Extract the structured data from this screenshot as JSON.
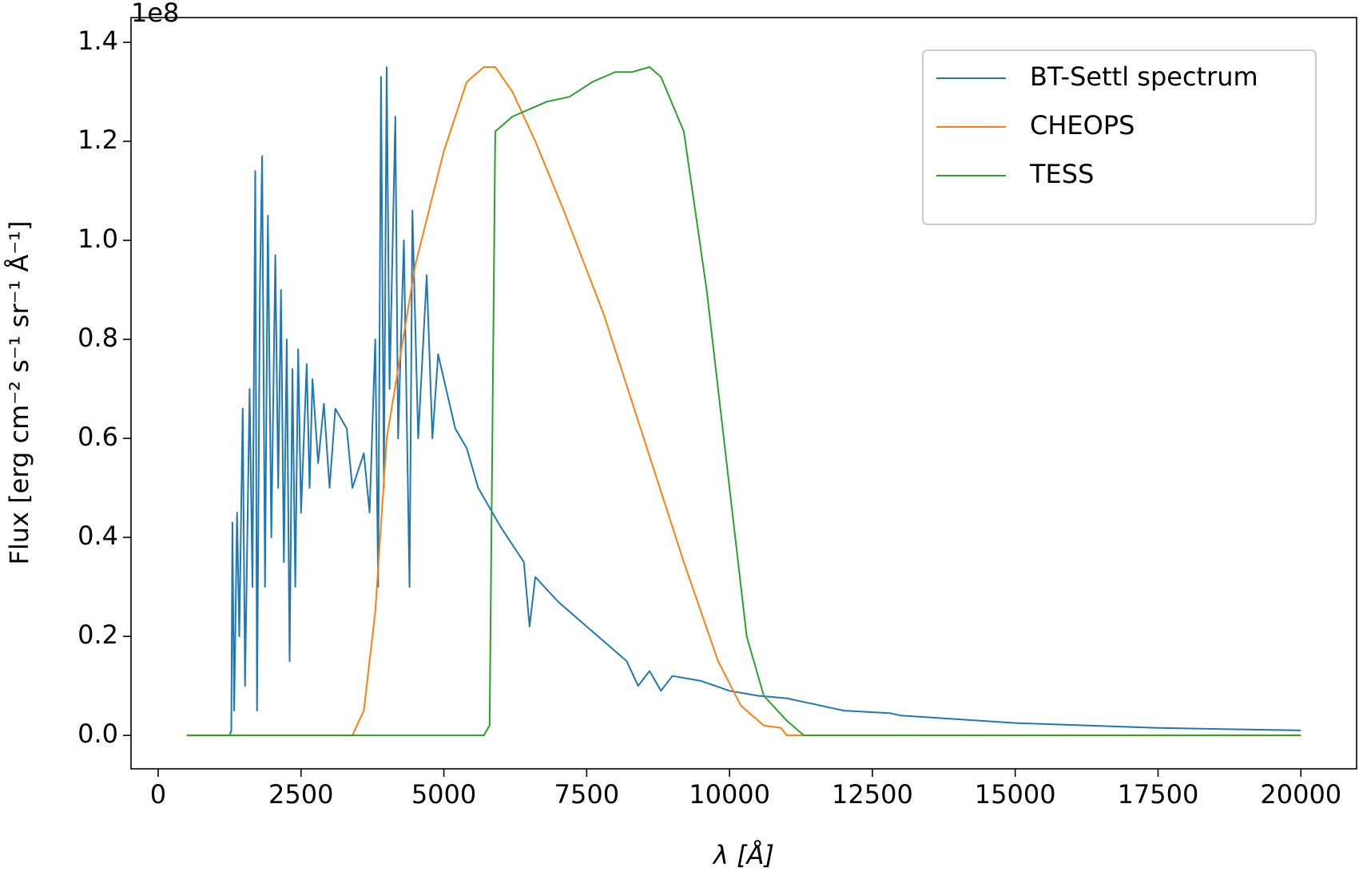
{
  "chart_data": {
    "type": "line",
    "xlabel": "λ [Å]",
    "ylabel": "Flux [erg cm⁻² s⁻¹ sr⁻¹ Å⁻¹]",
    "y_offset_text": "1e8",
    "xlim": [
      -475,
      20975
    ],
    "ylim": [
      -0.0675,
      1.45
    ],
    "xticks": [
      0,
      2500,
      5000,
      7500,
      10000,
      12500,
      15000,
      17500,
      20000
    ],
    "yticks": [
      {
        "value": 0,
        "label": "0.0"
      },
      0.2,
      0.4,
      0.6,
      0.8,
      {
        "value": 1,
        "label": "1.0"
      },
      1.2,
      1.4
    ],
    "grid": false,
    "legend": "upper right",
    "series": [
      {
        "name": "BT-Settl spectrum",
        "color": "#1f77b4",
        "x": [
          500,
          1250,
          1280,
          1300,
          1330,
          1380,
          1420,
          1480,
          1520,
          1600,
          1650,
          1700,
          1730,
          1780,
          1820,
          1870,
          1920,
          1980,
          2050,
          2100,
          2150,
          2200,
          2250,
          2300,
          2350,
          2400,
          2450,
          2500,
          2600,
          2650,
          2700,
          2800,
          2900,
          3000,
          3100,
          3300,
          3400,
          3600,
          3700,
          3800,
          3850,
          3900,
          3950,
          4000,
          4050,
          4150,
          4200,
          4300,
          4400,
          4450,
          4550,
          4700,
          4800,
          4900,
          5000,
          5200,
          5400,
          5600,
          6000,
          6400,
          6500,
          6600,
          7000,
          7500,
          8000,
          8200,
          8400,
          8600,
          8800,
          9000,
          9500,
          10000,
          10500,
          11000,
          12000,
          12800,
          13000,
          15000,
          17500,
          20000
        ],
        "values": [
          0,
          0,
          0.01,
          0.43,
          0.05,
          0.45,
          0.2,
          0.66,
          0.1,
          0.7,
          0.3,
          1.14,
          0.05,
          0.9,
          1.17,
          0.3,
          1.05,
          0.4,
          0.97,
          0.5,
          0.9,
          0.35,
          0.8,
          0.15,
          0.74,
          0.3,
          0.78,
          0.45,
          0.75,
          0.5,
          0.72,
          0.55,
          0.67,
          0.5,
          0.66,
          0.62,
          0.5,
          0.57,
          0.45,
          0.8,
          0.3,
          1.33,
          0.5,
          1.35,
          0.7,
          1.25,
          0.6,
          1.0,
          0.3,
          1.06,
          0.6,
          0.93,
          0.6,
          0.77,
          0.72,
          0.62,
          0.58,
          0.5,
          0.42,
          0.35,
          0.22,
          0.32,
          0.27,
          0.22,
          0.17,
          0.15,
          0.1,
          0.13,
          0.09,
          0.12,
          0.11,
          0.09,
          0.08,
          0.075,
          0.05,
          0.045,
          0.04,
          0.025,
          0.015,
          0.01
        ]
      },
      {
        "name": "CHEOPS",
        "color": "#ff7f0e",
        "x": [
          500,
          3400,
          3600,
          3800,
          4000,
          4500,
          5000,
          5400,
          5700,
          5900,
          6200,
          6600,
          7100,
          7800,
          8500,
          9200,
          9800,
          10200,
          10600,
          10900,
          11000,
          20000
        ],
        "values": [
          0,
          0,
          0.05,
          0.25,
          0.6,
          0.95,
          1.18,
          1.32,
          1.35,
          1.35,
          1.3,
          1.2,
          1.06,
          0.85,
          0.6,
          0.35,
          0.15,
          0.06,
          0.02,
          0.015,
          0,
          0
        ]
      },
      {
        "name": "TESS",
        "color": "#2ca02c",
        "x": [
          500,
          5700,
          5800,
          5900,
          6000,
          6200,
          6800,
          7200,
          7600,
          8000,
          8300,
          8600,
          8800,
          9200,
          9600,
          10000,
          10300,
          10600,
          11000,
          11300,
          20000
        ],
        "values": [
          0,
          0,
          0.02,
          1.22,
          1.23,
          1.25,
          1.28,
          1.29,
          1.32,
          1.34,
          1.34,
          1.35,
          1.33,
          1.22,
          0.9,
          0.5,
          0.2,
          0.08,
          0.03,
          0,
          0
        ]
      }
    ]
  }
}
